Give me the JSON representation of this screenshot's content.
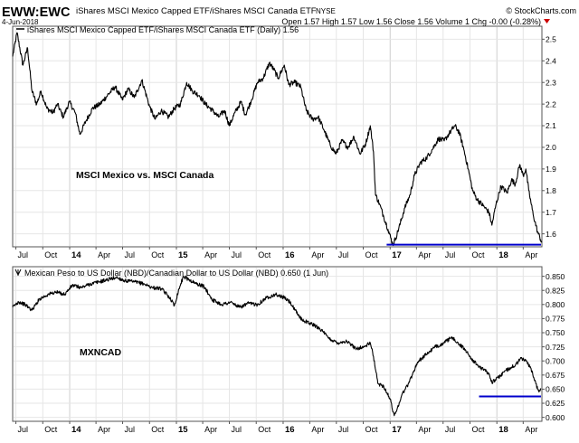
{
  "header": {
    "symbol": "EWW:EWC",
    "symbol_desc": "iShares MSCI Mexico Capped ETF/iShares MSCI Canada ETF",
    "exchange": "NYSE",
    "date": "4-Jun-2018",
    "quote": "Open 1.57  High 1.57  Low 1.56  Close 1.56  Volume 1  Chg -0.00 (-0.28%)",
    "brand": "© StockCharts.com"
  },
  "chart_data": [
    {
      "type": "line",
      "panel_label": "iShares MSCI Mexico Capped ETF/iShares MSCI Canada ETF (Daily) 1.56",
      "annotation": "MSCI Mexico vs. MSCI Canada",
      "x_ticks": [
        "Jul",
        "Oct",
        "14",
        "Apr",
        "Jul",
        "Oct",
        "15",
        "Apr",
        "Jul",
        "Oct",
        "16",
        "Apr",
        "Jul",
        "Oct",
        "17",
        "Apr",
        "Jul",
        "Oct",
        "18",
        "Apr"
      ],
      "y_ticks": [
        1.6,
        1.7,
        1.8,
        1.9,
        2.0,
        2.1,
        2.2,
        2.3,
        2.4,
        2.5
      ],
      "ylim": [
        1.54,
        2.56
      ],
      "x_range": [
        "2013-06-20",
        "2018-06-04"
      ],
      "series": [
        {
          "values": [
            [
              "2013-06-20",
              2.42
            ],
            [
              "2013-07-05",
              2.53
            ],
            [
              "2013-07-25",
              2.38
            ],
            [
              "2013-08-10",
              2.46
            ],
            [
              "2013-08-25",
              2.26
            ],
            [
              "2013-09-10",
              2.2
            ],
            [
              "2013-09-25",
              2.26
            ],
            [
              "2013-10-15",
              2.18
            ],
            [
              "2013-11-05",
              2.16
            ],
            [
              "2013-11-20",
              2.2
            ],
            [
              "2013-12-10",
              2.14
            ],
            [
              "2013-12-31",
              2.21
            ],
            [
              "2014-01-20",
              2.16
            ],
            [
              "2014-02-05",
              2.06
            ],
            [
              "2014-02-25",
              2.12
            ],
            [
              "2014-03-20",
              2.18
            ],
            [
              "2014-04-15",
              2.2
            ],
            [
              "2014-05-10",
              2.24
            ],
            [
              "2014-06-05",
              2.28
            ],
            [
              "2014-06-30",
              2.22
            ],
            [
              "2014-07-20",
              2.27
            ],
            [
              "2014-08-10",
              2.23
            ],
            [
              "2014-09-05",
              2.31
            ],
            [
              "2014-10-01",
              2.19
            ],
            [
              "2014-10-20",
              2.13
            ],
            [
              "2014-11-10",
              2.17
            ],
            [
              "2014-12-05",
              2.14
            ],
            [
              "2014-12-25",
              2.18
            ],
            [
              "2015-01-15",
              2.2
            ],
            [
              "2015-02-05",
              2.3
            ],
            [
              "2015-02-25",
              2.26
            ],
            [
              "2015-03-20",
              2.24
            ],
            [
              "2015-04-10",
              2.2
            ],
            [
              "2015-05-05",
              2.17
            ],
            [
              "2015-05-25",
              2.14
            ],
            [
              "2015-06-15",
              2.17
            ],
            [
              "2015-07-01",
              2.1
            ],
            [
              "2015-07-20",
              2.16
            ],
            [
              "2015-08-10",
              2.21
            ],
            [
              "2015-08-25",
              2.15
            ],
            [
              "2015-09-15",
              2.22
            ],
            [
              "2015-10-05",
              2.3
            ],
            [
              "2015-10-25",
              2.32
            ],
            [
              "2015-11-15",
              2.39
            ],
            [
              "2015-11-30",
              2.36
            ],
            [
              "2015-12-15",
              2.32
            ],
            [
              "2016-01-05",
              2.38
            ],
            [
              "2016-01-20",
              2.29
            ],
            [
              "2016-02-10",
              2.3
            ],
            [
              "2016-03-01",
              2.28
            ],
            [
              "2016-03-20",
              2.17
            ],
            [
              "2016-04-10",
              2.13
            ],
            [
              "2016-04-30",
              2.14
            ],
            [
              "2016-05-20",
              2.08
            ],
            [
              "2016-06-10",
              2.01
            ],
            [
              "2016-06-30",
              1.97
            ],
            [
              "2016-07-20",
              2.03
            ],
            [
              "2016-08-10",
              2.0
            ],
            [
              "2016-08-30",
              2.05
            ],
            [
              "2016-09-20",
              1.97
            ],
            [
              "2016-10-10",
              2.02
            ],
            [
              "2016-10-25",
              2.1
            ],
            [
              "2016-11-05",
              1.98
            ],
            [
              "2016-11-12",
              1.78
            ],
            [
              "2016-11-25",
              1.74
            ],
            [
              "2016-12-10",
              1.68
            ],
            [
              "2016-12-25",
              1.62
            ],
            [
              "2017-01-10",
              1.55
            ],
            [
              "2017-01-20",
              1.58
            ],
            [
              "2017-02-05",
              1.65
            ],
            [
              "2017-02-20",
              1.72
            ],
            [
              "2017-03-10",
              1.78
            ],
            [
              "2017-03-25",
              1.87
            ],
            [
              "2017-04-15",
              1.93
            ],
            [
              "2017-05-05",
              1.95
            ],
            [
              "2017-05-25",
              1.99
            ],
            [
              "2017-06-15",
              2.04
            ],
            [
              "2017-07-05",
              2.03
            ],
            [
              "2017-07-25",
              2.07
            ],
            [
              "2017-08-10",
              2.1
            ],
            [
              "2017-08-25",
              2.07
            ],
            [
              "2017-09-10",
              1.99
            ],
            [
              "2017-09-25",
              1.9
            ],
            [
              "2017-10-10",
              1.8
            ],
            [
              "2017-10-25",
              1.76
            ],
            [
              "2017-11-15",
              1.73
            ],
            [
              "2017-12-05",
              1.7
            ],
            [
              "2017-12-15",
              1.64
            ],
            [
              "2017-12-28",
              1.73
            ],
            [
              "2018-01-15",
              1.82
            ],
            [
              "2018-02-05",
              1.79
            ],
            [
              "2018-02-20",
              1.85
            ],
            [
              "2018-03-05",
              1.83
            ],
            [
              "2018-03-20",
              1.92
            ],
            [
              "2018-04-01",
              1.87
            ],
            [
              "2018-04-10",
              1.9
            ],
            [
              "2018-04-20",
              1.8
            ],
            [
              "2018-05-05",
              1.69
            ],
            [
              "2018-05-20",
              1.61
            ],
            [
              "2018-06-04",
              1.56
            ]
          ]
        }
      ],
      "support_line": {
        "value": 1.55,
        "from": "2016-12-20",
        "to": "2018-06-04",
        "color": "#0000cc"
      }
    },
    {
      "type": "line",
      "panel_label": "Mexican Peso to US Dollar (NBD)/Canadian Dollar to US Dollar (NBD) 0.650 (1 Jun)",
      "annotation": "MXNCAD",
      "x_ticks": [
        "Jul",
        "Oct",
        "14",
        "Apr",
        "Jul",
        "Oct",
        "15",
        "Apr",
        "Jul",
        "Oct",
        "16",
        "Apr",
        "Jul",
        "Oct",
        "17",
        "Apr",
        "Jul",
        "Oct",
        "18",
        "Apr"
      ],
      "y_ticks": [
        0.6,
        0.625,
        0.65,
        0.675,
        0.7,
        0.725,
        0.75,
        0.775,
        0.8,
        0.825,
        0.85
      ],
      "ylim": [
        0.593,
        0.867
      ],
      "x_range": [
        "2013-06-20",
        "2018-06-04"
      ],
      "series": [
        {
          "values": [
            [
              "2013-06-20",
              0.795
            ],
            [
              "2013-07-10",
              0.805
            ],
            [
              "2013-08-01",
              0.8
            ],
            [
              "2013-08-25",
              0.79
            ],
            [
              "2013-09-20",
              0.81
            ],
            [
              "2013-10-20",
              0.818
            ],
            [
              "2013-11-15",
              0.822
            ],
            [
              "2013-12-15",
              0.818
            ],
            [
              "2014-01-10",
              0.834
            ],
            [
              "2014-02-10",
              0.83
            ],
            [
              "2014-03-10",
              0.836
            ],
            [
              "2014-04-10",
              0.84
            ],
            [
              "2014-05-10",
              0.844
            ],
            [
              "2014-06-10",
              0.848
            ],
            [
              "2014-07-10",
              0.842
            ],
            [
              "2014-08-10",
              0.84
            ],
            [
              "2014-09-10",
              0.837
            ],
            [
              "2014-10-10",
              0.83
            ],
            [
              "2014-11-10",
              0.828
            ],
            [
              "2014-12-10",
              0.812
            ],
            [
              "2014-12-25",
              0.798
            ],
            [
              "2015-01-10",
              0.828
            ],
            [
              "2015-01-25",
              0.85
            ],
            [
              "2015-02-10",
              0.845
            ],
            [
              "2015-03-05",
              0.838
            ],
            [
              "2015-04-05",
              0.832
            ],
            [
              "2015-05-05",
              0.808
            ],
            [
              "2015-06-05",
              0.8
            ],
            [
              "2015-07-05",
              0.804
            ],
            [
              "2015-08-05",
              0.795
            ],
            [
              "2015-09-05",
              0.802
            ],
            [
              "2015-10-05",
              0.8
            ],
            [
              "2015-11-05",
              0.812
            ],
            [
              "2015-12-05",
              0.818
            ],
            [
              "2016-01-05",
              0.812
            ],
            [
              "2016-01-25",
              0.804
            ],
            [
              "2016-02-10",
              0.79
            ],
            [
              "2016-03-05",
              0.773
            ],
            [
              "2016-04-05",
              0.766
            ],
            [
              "2016-05-05",
              0.758
            ],
            [
              "2016-06-05",
              0.74
            ],
            [
              "2016-07-05",
              0.732
            ],
            [
              "2016-08-05",
              0.735
            ],
            [
              "2016-09-05",
              0.722
            ],
            [
              "2016-10-05",
              0.725
            ],
            [
              "2016-10-25",
              0.732
            ],
            [
              "2016-11-05",
              0.708
            ],
            [
              "2016-11-20",
              0.66
            ],
            [
              "2016-12-10",
              0.655
            ],
            [
              "2017-01-01",
              0.632
            ],
            [
              "2017-01-15",
              0.603
            ],
            [
              "2017-01-25",
              0.615
            ],
            [
              "2017-02-10",
              0.64
            ],
            [
              "2017-03-05",
              0.66
            ],
            [
              "2017-04-05",
              0.698
            ],
            [
              "2017-05-05",
              0.712
            ],
            [
              "2017-06-05",
              0.725
            ],
            [
              "2017-07-05",
              0.732
            ],
            [
              "2017-07-25",
              0.74
            ],
            [
              "2017-08-10",
              0.738
            ],
            [
              "2017-08-25",
              0.729
            ],
            [
              "2017-09-15",
              0.72
            ],
            [
              "2017-10-05",
              0.705
            ],
            [
              "2017-10-25",
              0.693
            ],
            [
              "2017-11-15",
              0.685
            ],
            [
              "2017-12-05",
              0.678
            ],
            [
              "2017-12-15",
              0.662
            ],
            [
              "2018-01-05",
              0.67
            ],
            [
              "2018-01-25",
              0.68
            ],
            [
              "2018-02-15",
              0.688
            ],
            [
              "2018-03-05",
              0.692
            ],
            [
              "2018-03-25",
              0.705
            ],
            [
              "2018-04-10",
              0.7
            ],
            [
              "2018-04-25",
              0.69
            ],
            [
              "2018-05-10",
              0.665
            ],
            [
              "2018-05-25",
              0.645
            ],
            [
              "2018-06-01",
              0.65
            ]
          ]
        }
      ],
      "support_line": {
        "value": 0.637,
        "from": "2017-11-01",
        "to": "2018-06-04",
        "color": "#0000cc"
      }
    }
  ],
  "colors": {
    "series_line": "#000000",
    "support_line": "#0000cc",
    "grid": "#e3e3e3",
    "border": "#555555",
    "negative_change": "#cc0000"
  }
}
